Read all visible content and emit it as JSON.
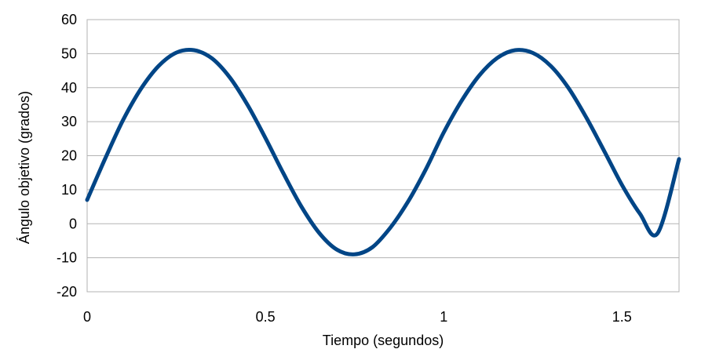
{
  "chart_data": {
    "type": "line",
    "title": "",
    "xlabel": "Tiempo (segundos)",
    "ylabel": "Ángulo objetivo (grados)",
    "xlim": [
      0,
      1.66
    ],
    "ylim": [
      -20,
      60
    ],
    "xticks": [
      0,
      0.5,
      1,
      1.5
    ],
    "xtick_labels": [
      "0",
      "0.5",
      "1",
      "1.5"
    ],
    "yticks": [
      -20,
      -10,
      0,
      10,
      20,
      30,
      40,
      50,
      60
    ],
    "ytick_labels": [
      "-20",
      "-10",
      "0",
      "10",
      "20",
      "30",
      "40",
      "50",
      "60"
    ],
    "grid": true,
    "legend": "none",
    "series": [
      {
        "color": "#004586",
        "x": [
          0,
          0.05,
          0.1,
          0.15,
          0.2,
          0.25,
          0.3,
          0.35,
          0.4,
          0.45,
          0.5,
          0.55,
          0.6,
          0.65,
          0.7,
          0.75,
          0.8,
          0.85,
          0.9,
          0.95,
          1.0,
          1.05,
          1.1,
          1.15,
          1.2,
          1.25,
          1.3,
          1.35,
          1.4,
          1.45,
          1.5,
          1.55,
          1.6,
          1.66
        ],
        "y": [
          7.0,
          19.0,
          30.3,
          39.5,
          46.3,
          50.3,
          51.0,
          48.6,
          43.0,
          34.9,
          25.2,
          14.9,
          5.2,
          -2.6,
          -7.6,
          -9.0,
          -6.9,
          -1.2,
          6.5,
          16.0,
          26.8,
          36.1,
          43.6,
          48.7,
          51.0,
          50.2,
          46.4,
          39.9,
          31.2,
          21.4,
          11.4,
          3.0,
          -2.8,
          19.0
        ]
      }
    ]
  }
}
